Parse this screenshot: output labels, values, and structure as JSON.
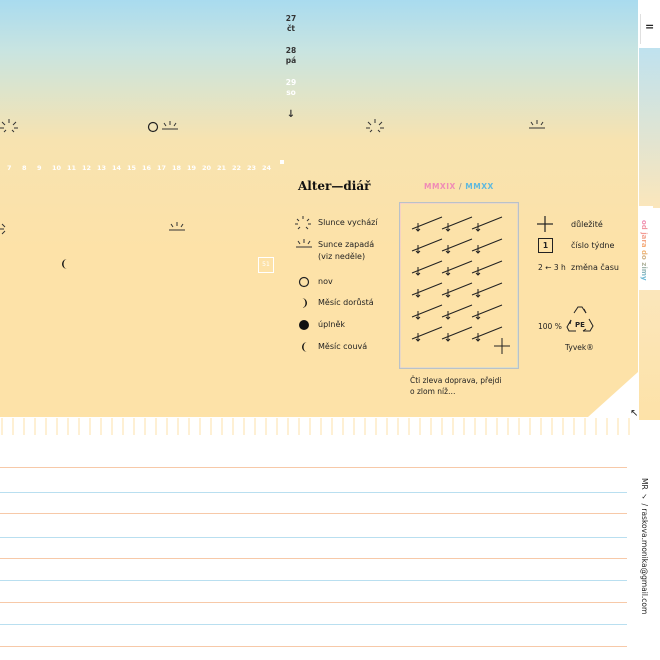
{
  "calendar": {
    "dates": [
      {
        "num": "27",
        "day": "čt",
        "faded": false
      },
      {
        "num": "28",
        "day": "pá",
        "faded": false
      },
      {
        "num": "29",
        "day": "so",
        "faded": true
      }
    ],
    "arrow": "↓",
    "hours": [
      "7",
      "8",
      "9",
      "10",
      "11",
      "12",
      "13",
      "14",
      "15",
      "16",
      "17",
      "18",
      "19",
      "20",
      "21",
      "22",
      "23",
      "24"
    ],
    "week_badge": "51"
  },
  "legend": {
    "title": "Alter—diář",
    "year_a": "MMXIX",
    "year_sep": "/",
    "year_b": "MMXX",
    "items": [
      {
        "label": "Slunce vychází"
      },
      {
        "label": "Sunce zapadá"
      },
      {
        "label": "(viz neděle)"
      },
      {
        "label": "nov"
      },
      {
        "label": "Měsíc dorůstá"
      },
      {
        "label": "úplněk"
      },
      {
        "label": "Měsíc couvá"
      }
    ],
    "right_items": [
      {
        "label": "důležité"
      },
      {
        "label": "číslo týdne"
      },
      {
        "label": "změna času"
      }
    ],
    "week_example": "1",
    "time_change": "2 ← 3 h",
    "material_percent": "100 %",
    "material_code": "PE",
    "material_name": "Tyvek®",
    "guide_caption_1": "Čti zleva doprava, přejdi",
    "guide_caption_2": "o zlom níž…"
  },
  "side": {
    "tab_label": "od jara do zimy",
    "equals": "=",
    "corner_arrow": "↖",
    "email": "MR ✓ / raskova.monika@gmail.com"
  },
  "colors": {
    "sky": "#a9dbef",
    "sand": "#fde2a8",
    "pink": "#f08bb6",
    "blue": "#5fb9de",
    "line": "#9fd3ea"
  }
}
